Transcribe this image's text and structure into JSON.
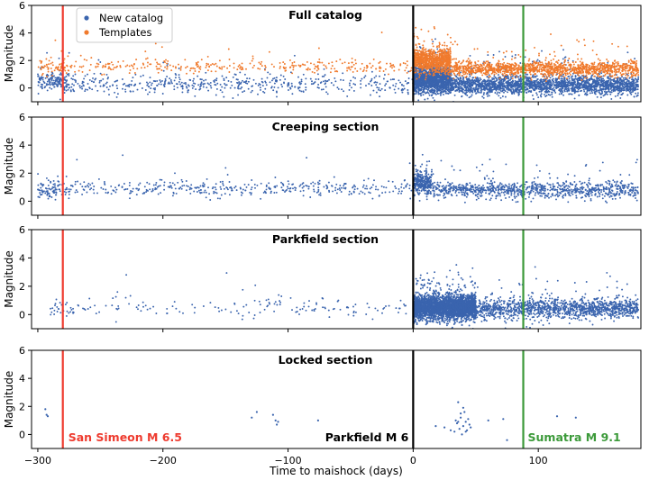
{
  "chart_data": {
    "type": "scatter",
    "xlabel": "Time to maishock (days)",
    "ylabel": "Magnitude",
    "xlim": [
      -305,
      182
    ],
    "xticks": [
      -300,
      -200,
      -100,
      0,
      100
    ],
    "ylim": [
      -1,
      6
    ],
    "yticks": [
      0,
      2,
      4,
      6
    ],
    "legend": {
      "placement": "top-left of first panel",
      "entries": [
        {
          "label": "New catalog",
          "color": "#3a64ae"
        },
        {
          "label": "Templates",
          "color": "#f07a2d"
        }
      ]
    },
    "events": [
      {
        "x": -280,
        "label": "San Simeon M 6.5",
        "color": "#ee3b2f"
      },
      {
        "x": 0,
        "label": "Parkfield M 6",
        "color": "#000000"
      },
      {
        "x": 88,
        "label": "Sumatra M 9.1",
        "color": "#3c9a3a"
      }
    ],
    "panels": [
      {
        "title": "Full catalog",
        "series": [
          {
            "name": "New catalog",
            "color": "#3a64ae",
            "segments": [
              {
                "x": [
                  -300,
                  -275
                ],
                "count": 160,
                "center": 0.5,
                "spread": 0.6
              },
              {
                "x": [
                  -275,
                  0
                ],
                "count": 500,
                "center": 0.3,
                "spread": 0.7
              },
              {
                "x": [
                  0,
                  30
                ],
                "count": 1600,
                "center": 0.6,
                "spread": 0.9
              },
              {
                "x": [
                  30,
                  180
                ],
                "count": 2200,
                "center": 0.2,
                "spread": 0.6
              }
            ]
          },
          {
            "name": "Templates",
            "color": "#f07a2d",
            "segments": [
              {
                "x": [
                  -300,
                  -275
                ],
                "count": 70,
                "center": 1.5,
                "spread": 0.5
              },
              {
                "x": [
                  -275,
                  0
                ],
                "count": 320,
                "center": 1.6,
                "spread": 0.45
              },
              {
                "x": [
                  0,
                  30
                ],
                "count": 900,
                "center": 2.0,
                "spread": 0.8
              },
              {
                "x": [
                  30,
                  180
                ],
                "count": 1300,
                "center": 1.4,
                "spread": 0.5
              }
            ]
          }
        ]
      },
      {
        "title": "Creeping section",
        "series": [
          {
            "name": "New catalog",
            "color": "#3a64ae",
            "segments": [
              {
                "x": [
                  -300,
                  -285
                ],
                "count": 70,
                "center": 0.8,
                "spread": 0.7
              },
              {
                "x": [
                  -285,
                  0
                ],
                "count": 420,
                "center": 0.9,
                "spread": 0.55
              },
              {
                "x": [
                  0,
                  15
                ],
                "count": 300,
                "center": 1.3,
                "spread": 0.8
              },
              {
                "x": [
                  15,
                  180
                ],
                "count": 900,
                "center": 0.8,
                "spread": 0.55
              }
            ]
          }
        ]
      },
      {
        "title": "Parkfield section",
        "series": [
          {
            "name": "New catalog",
            "color": "#3a64ae",
            "segments": [
              {
                "x": [
                  -290,
                  -270
                ],
                "count": 30,
                "center": 0.4,
                "spread": 0.5
              },
              {
                "x": [
                  -270,
                  0
                ],
                "count": 150,
                "center": 0.5,
                "spread": 0.7
              },
              {
                "x": [
                  0,
                  50
                ],
                "count": 3200,
                "center": 0.5,
                "spread": 0.75
              },
              {
                "x": [
                  50,
                  180
                ],
                "count": 1300,
                "center": 0.4,
                "spread": 0.65
              }
            ]
          }
        ]
      },
      {
        "title": "Locked section",
        "series": [
          {
            "name": "New catalog",
            "color": "#3a64ae",
            "points": [
              [
                -294,
                1.8
              ],
              [
                -293,
                1.4
              ],
              [
                -292,
                1.3
              ],
              [
                -129,
                1.2
              ],
              [
                -125,
                1.6
              ],
              [
                -112,
                1.4
              ],
              [
                -110,
                1.0
              ],
              [
                -109,
                0.7
              ],
              [
                -108,
                0.9
              ],
              [
                -76,
                1.0
              ],
              [
                18,
                0.6
              ],
              [
                25,
                0.5
              ],
              [
                30,
                0.3
              ],
              [
                33,
                0.2
              ],
              [
                34,
                1.0
              ],
              [
                35,
                0.8
              ],
              [
                36,
                2.3
              ],
              [
                37,
                0.4
              ],
              [
                38,
                1.2
              ],
              [
                39,
                0.0
              ],
              [
                40,
                0.6
              ],
              [
                41,
                1.6
              ],
              [
                42,
                0.9
              ],
              [
                43,
                0.3
              ],
              [
                44,
                1.1
              ],
              [
                45,
                0.7
              ],
              [
                46,
                0.5
              ],
              [
                38,
                1.5
              ],
              [
                40,
                1.9
              ],
              [
                42,
                0.2
              ],
              [
                36,
                0.9
              ],
              [
                60,
                1.0
              ],
              [
                72,
                1.1
              ],
              [
                75,
                -0.4
              ],
              [
                115,
                1.3
              ],
              [
                130,
                1.2
              ]
            ]
          }
        ]
      }
    ]
  }
}
